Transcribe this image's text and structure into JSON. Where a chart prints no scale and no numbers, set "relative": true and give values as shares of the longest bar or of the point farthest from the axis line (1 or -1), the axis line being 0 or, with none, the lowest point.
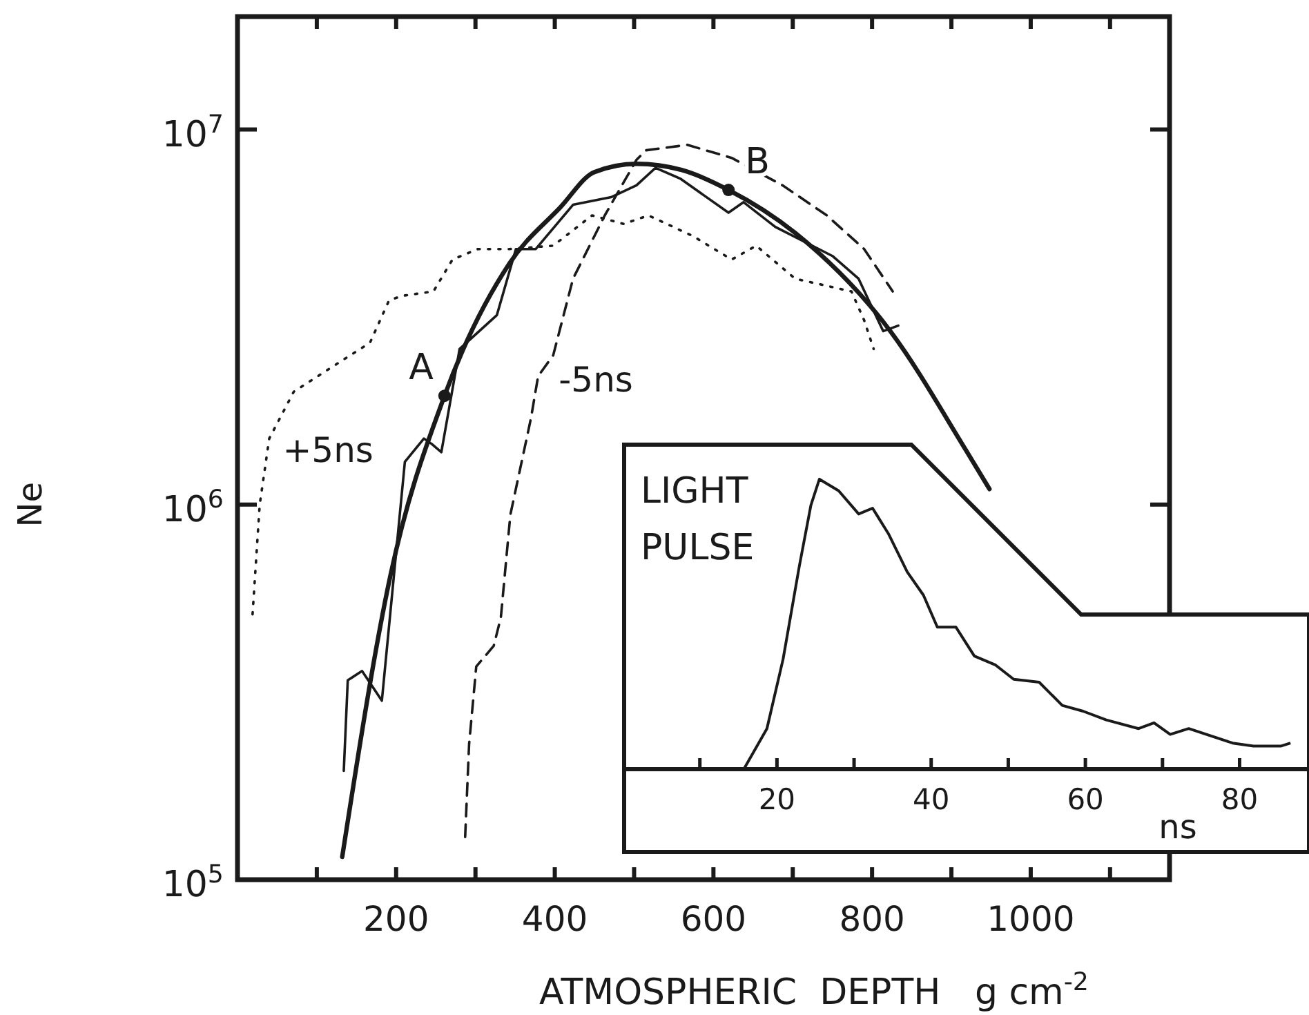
{
  "chart_data": [
    {
      "type": "line",
      "xlabel": "ATMOSPHERIC  DEPTH   g cm$^{-2}$",
      "ylabel": "Ne",
      "log": "y",
      "xlim": [
        0,
        1175
      ],
      "ylim": [
        100000,
        20000000
      ],
      "xticks": [
        {
          "value": 100,
          "label": null
        },
        200,
        {
          "value": 300,
          "label": null
        },
        400,
        {
          "value": 500,
          "label": null
        },
        600,
        {
          "value": 700,
          "label": null
        },
        800,
        {
          "value": 900,
          "label": null
        },
        1000,
        {
          "value": 1100,
          "label": null
        }
      ],
      "yticks": [
        {
          "value": 100000,
          "label": "10$^{5}$"
        },
        {
          "value": 1000000,
          "label": "10$^{6}$"
        },
        {
          "value": 10000000,
          "label": "10$^{7}$"
        }
      ],
      "grid": false,
      "series": [
        {
          "color": "#1a1a1a",
          "line_style": "solid",
          "x": [
            132,
            193,
            261,
            343,
            407,
            450,
            503,
            560,
            619,
            703,
            823,
            918,
            948
          ],
          "values": [
            115000,
            650000,
            1950000,
            4400000,
            6200000,
            7700000,
            8100000,
            7800000,
            6900000,
            5300000,
            2900000,
            1400000,
            1100000
          ]
        },
        {
          "color": "#1a1a1a",
          "line_style": "solid",
          "x": [
            134,
            139,
            157,
            182,
            211,
            235,
            245,
            257,
            280,
            327,
            351,
            376,
            423,
            471,
            503,
            527,
            558,
            619,
            638,
            678,
            750,
            783,
            814,
            833
          ],
          "values": [
            195000,
            340000,
            360000,
            300000,
            1300000,
            1500000,
            1450000,
            1380000,
            2600000,
            3200000,
            4800000,
            4800000,
            6300000,
            6600000,
            7100000,
            7900000,
            7400000,
            6000000,
            6400000,
            5500000,
            4600000,
            4000000,
            2900000,
            3000000
          ]
        },
        {
          "name": "-5ns",
          "color": "#1a1a1a",
          "line_style": "dashed",
          "x": [
            287,
            292,
            301,
            323,
            332,
            344,
            370,
            379,
            398,
            423,
            463,
            503,
            515,
            567,
            623,
            687,
            743,
            790,
            826
          ],
          "values": [
            130000,
            230000,
            370000,
            420000,
            500000,
            940000,
            1700000,
            2200000,
            2500000,
            4000000,
            5900000,
            8300000,
            8800000,
            9100000,
            8400000,
            7100000,
            5900000,
            4800000,
            3700000
          ]
        },
        {
          "name": "+5ns",
          "color": "#1a1a1a",
          "line_style": "dotted",
          "x": [
            19,
            28,
            40,
            71,
            129,
            167,
            191,
            207,
            247,
            271,
            303,
            343,
            398,
            447,
            487,
            518,
            574,
            623,
            654,
            703,
            750,
            774,
            790,
            802
          ],
          "values": [
            510000,
            1000000,
            1500000,
            2000000,
            2400000,
            2700000,
            3500000,
            3600000,
            3700000,
            4500000,
            4800000,
            4800000,
            4900000,
            5900000,
            5600000,
            5900000,
            5200000,
            4500000,
            4900000,
            4000000,
            3800000,
            3700000,
            3100000,
            2600000
          ]
        }
      ],
      "annotations": [
        {
          "text": "A",
          "x": 261,
          "y": 1950000
        },
        {
          "text": "B",
          "x": 619,
          "y": 6900000
        }
      ]
    },
    {
      "type": "line",
      "title": "LIGHT PULSE",
      "xlabel": "ns",
      "relative": true,
      "xlim": [
        0,
        89
      ],
      "xticks": [
        {
          "value": 10,
          "label": null
        },
        20,
        {
          "value": 30,
          "label": null
        },
        40,
        {
          "value": 50,
          "label": null
        },
        60,
        {
          "value": 70,
          "label": null
        },
        80
      ],
      "series": [
        {
          "color": "#1a1a1a",
          "x": [
            15.7,
            18.7,
            20.8,
            22.9,
            24.4,
            25.5,
            28.0,
            30.6,
            32.4,
            34.5,
            36.9,
            39.0,
            40.8,
            43.2,
            45.6,
            48.3,
            50.7,
            54.0,
            57.0,
            59.7,
            62.7,
            66.9,
            68.9,
            71.0,
            73.4,
            79.1,
            81.8,
            85.4,
            86.6
          ],
          "values": [
            0,
            0.14,
            0.38,
            0.7,
            0.91,
            1,
            0.96,
            0.88,
            0.9,
            0.81,
            0.68,
            0.6,
            0.49,
            0.49,
            0.39,
            0.36,
            0.31,
            0.3,
            0.22,
            0.2,
            0.17,
            0.14,
            0.16,
            0.12,
            0.14,
            0.09,
            0.08,
            0.08,
            0.09
          ]
        }
      ]
    }
  ]
}
